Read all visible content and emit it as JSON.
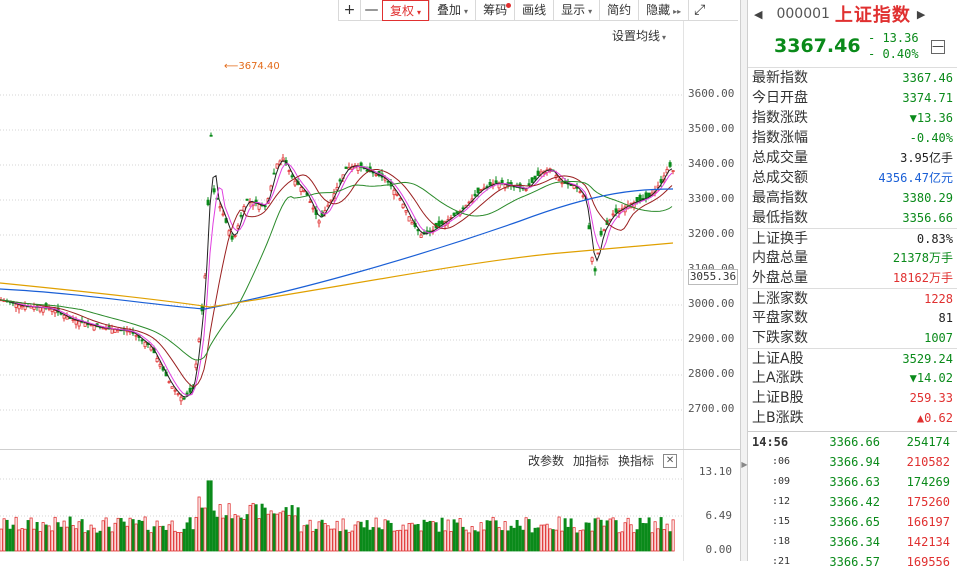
{
  "toolbar": {
    "zoom_in": "+",
    "zoom_out": "—",
    "items": [
      {
        "label": "复权",
        "caret": "▾",
        "active": true
      },
      {
        "label": "叠加",
        "caret": "▾"
      },
      {
        "label": "筹码",
        "dot": true
      },
      {
        "label": "画线"
      },
      {
        "label": "显示",
        "caret": "▾"
      },
      {
        "label": "简约"
      },
      {
        "label": "隐藏",
        "caret": "▸▸"
      }
    ],
    "fullscreen_icon": "expand-icon"
  },
  "main_chart": {
    "settings_label": "设置均线",
    "settings_caret": "▾",
    "max_marker": "3674.40",
    "current_tag": "3055.36",
    "y_ticks": [
      "3600.00",
      "3500.00",
      "3400.00",
      "3300.00",
      "3200.00",
      "3100.00",
      "3000.00",
      "2900.00",
      "2800.00",
      "2700.00"
    ],
    "colors": {
      "up": "#e03030",
      "down": "#0a8a1a",
      "ma5": "#222222",
      "ma10": "#e040e0",
      "ma20": "#9a2020",
      "ma30": "#2a8a2a",
      "ma60": "#1a5fd6",
      "ma120": "#e0a000"
    }
  },
  "volume_chart": {
    "buttons": [
      "改参数",
      "加指标",
      "换指标"
    ],
    "close_icon": "close-icon",
    "y_ticks": [
      "13.10",
      "6.49",
      "0.00"
    ]
  },
  "panel": {
    "prev_arrow": "◀",
    "next_arrow": "▶",
    "code": "000001",
    "name": "上证指数",
    "price": "3367.46",
    "change": "- 13.36",
    "change_pct": "- 0.40%",
    "collapse_label": "—",
    "rows": [
      {
        "label": "最新指数",
        "value": "3367.46",
        "cls": "down"
      },
      {
        "label": "今日开盘",
        "value": "3374.71",
        "cls": "down"
      },
      {
        "label": "指数涨跌",
        "value": "▼13.36",
        "cls": "down"
      },
      {
        "label": "指数涨幅",
        "value": "-0.40%",
        "cls": "down"
      },
      {
        "label": "总成交量",
        "value": "3.95亿手",
        "cls": "dark"
      },
      {
        "label": "总成交额",
        "value": "4356.47亿元",
        "cls": "blue"
      },
      {
        "label": "最高指数",
        "value": "3380.29",
        "cls": "down"
      },
      {
        "label": "最低指数",
        "value": "3356.66",
        "cls": "down"
      },
      {
        "label": "上证换手",
        "value": "0.83%",
        "cls": "dark",
        "sep": true
      },
      {
        "label": "内盘总量",
        "value": "21378万手",
        "cls": "down"
      },
      {
        "label": "外盘总量",
        "value": "18162万手",
        "cls": "up"
      },
      {
        "label": "上涨家数",
        "value": "1228",
        "cls": "up",
        "sep": true
      },
      {
        "label": "平盘家数",
        "value": "81",
        "cls": "dark"
      },
      {
        "label": "下跌家数",
        "value": "1007",
        "cls": "down"
      },
      {
        "label": "上证A股",
        "value": "3529.24",
        "cls": "down",
        "sep": true
      },
      {
        "label": "上A涨跌",
        "value": "▼14.02",
        "cls": "down"
      },
      {
        "label": "上证B股",
        "value": "259.33",
        "cls": "up"
      },
      {
        "label": "上B涨跌",
        "value": "▲0.62",
        "cls": "up"
      }
    ],
    "ticks": [
      {
        "time": "14:56",
        "price": "3366.66",
        "vol": "254174",
        "dir": "down"
      },
      {
        "time": ":06",
        "price": "3366.94",
        "vol": "210582",
        "dir": "up"
      },
      {
        "time": ":09",
        "price": "3366.63",
        "vol": "174269",
        "dir": "down"
      },
      {
        "time": ":12",
        "price": "3366.42",
        "vol": "175260",
        "dir": "up"
      },
      {
        "time": ":15",
        "price": "3366.65",
        "vol": "166197",
        "dir": "up"
      },
      {
        "time": ":18",
        "price": "3366.34",
        "vol": "142134",
        "dir": "up"
      },
      {
        "time": ":21",
        "price": "3366.57",
        "vol": "169556",
        "dir": "up"
      }
    ]
  }
}
